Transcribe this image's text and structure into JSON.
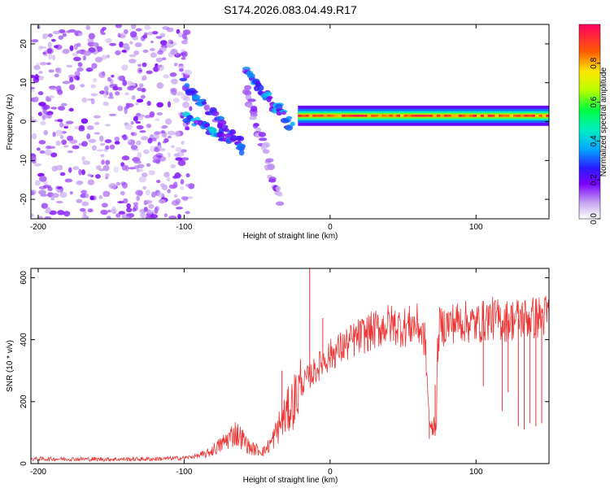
{
  "title": "S174.2026.083.04.49.R17",
  "chart_data": [
    {
      "type": "heatmap",
      "name": "spectrogram",
      "xlabel": "Height of straight line (km)",
      "ylabel": "Frequency (Hz)",
      "xlim": [
        -205,
        150
      ],
      "ylim": [
        -25,
        25
      ],
      "xticks": [
        -200,
        -100,
        0,
        100
      ],
      "yticks": [
        -20,
        -10,
        0,
        10,
        20
      ],
      "features": [
        {
          "kind": "scatter_noise",
          "x_range": [
            -205,
            -95
          ],
          "y_range": [
            -25,
            25
          ],
          "amplitude": 0.15
        },
        {
          "kind": "streak",
          "x": [
            -100,
            -60
          ],
          "y": [
            10,
            -7
          ],
          "amplitude": 0.25
        },
        {
          "kind": "streak",
          "x": [
            -98,
            -60
          ],
          "y": [
            1,
            -6
          ],
          "amplitude": 0.3
        },
        {
          "kind": "streak",
          "x": [
            -57,
            -27
          ],
          "y": [
            13,
            -1
          ],
          "amplitude": 0.3
        },
        {
          "kind": "streak",
          "x": [
            -57,
            -35
          ],
          "y": [
            8,
            -20
          ],
          "amplitude": 0.12
        },
        {
          "kind": "band",
          "x_range": [
            -22,
            150
          ],
          "center": 1.5,
          "peak_amplitude": 1.0
        }
      ],
      "colorbar": {
        "label": "Normalized spectral amplitude",
        "range": [
          0,
          1
        ],
        "ticks": [
          0.0,
          0.2,
          0.4,
          0.6,
          0.8
        ]
      }
    },
    {
      "type": "line",
      "name": "snr",
      "xlabel": "Height of straight line (km)",
      "ylabel": "SNR (10 * v/v)",
      "xlim": [
        -205,
        150
      ],
      "ylim": [
        0,
        630
      ],
      "xticks": [
        -200,
        -100,
        0,
        100
      ],
      "yticks": [
        0,
        200,
        400,
        600
      ],
      "color": "#ee3333",
      "x": [
        -205,
        -180,
        -150,
        -120,
        -100,
        -85,
        -75,
        -65,
        -60,
        -55,
        -45,
        -40,
        -35,
        -30,
        -25,
        -20,
        -15,
        -10,
        -5,
        0,
        10,
        20,
        30,
        40,
        50,
        60,
        65,
        68,
        70,
        75,
        80,
        90,
        100,
        110,
        120,
        130,
        140,
        150
      ],
      "values": [
        15,
        15,
        14,
        15,
        18,
        30,
        60,
        100,
        80,
        50,
        40,
        70,
        120,
        160,
        200,
        250,
        280,
        300,
        330,
        350,
        380,
        410,
        430,
        450,
        440,
        450,
        400,
        140,
        130,
        440,
        450,
        460,
        450,
        470,
        460,
        470,
        470,
        480
      ],
      "spikes": [
        {
          "x": -14,
          "value": 630
        },
        {
          "x": -33,
          "value": 300
        },
        {
          "x": -5,
          "value": 470
        },
        {
          "x": 95,
          "value": 420
        },
        {
          "x": 105,
          "value": 250
        },
        {
          "x": 118,
          "value": 170
        },
        {
          "x": 122,
          "value": 230
        }
      ],
      "dips": [
        {
          "x": 68,
          "value": 80
        },
        {
          "x": 70,
          "value": 100
        },
        {
          "x": 72,
          "value": 90
        },
        {
          "x": 129,
          "value": 120
        },
        {
          "x": 133,
          "value": 110
        },
        {
          "x": 137,
          "value": 130
        },
        {
          "x": 141,
          "value": 120
        },
        {
          "x": 145,
          "value": 130
        }
      ]
    }
  ]
}
